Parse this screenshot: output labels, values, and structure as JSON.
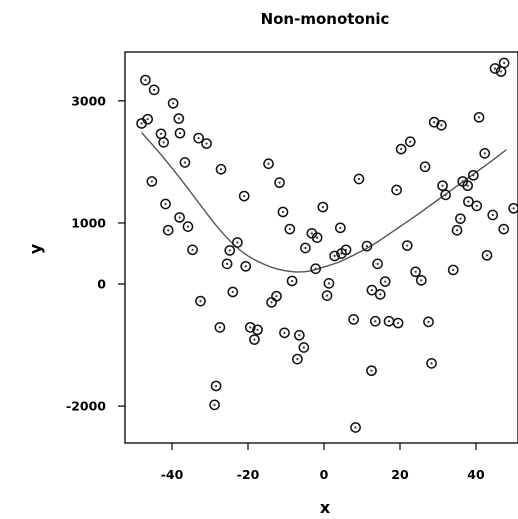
{
  "chart_data": {
    "type": "scatter",
    "title": "Non-monotonic",
    "xlabel": "x",
    "ylabel": "y",
    "xlim": [
      -52,
      52
    ],
    "ylim": [
      -2600,
      3700
    ],
    "xticks": [
      -40,
      -20,
      0,
      20,
      40
    ],
    "yticks": [
      -2000,
      0,
      1000,
      3000
    ],
    "xtick_labels": [
      "-40",
      "-20",
      "0",
      "20",
      "40"
    ],
    "ytick_labels": [
      "-2000",
      "0",
      "1000",
      "3000"
    ],
    "grid": false,
    "marker": "open-circle-with-dot",
    "points": [
      {
        "x": -47.0,
        "y": 3340
      },
      {
        "x": -44.7,
        "y": 3180
      },
      {
        "x": -48.0,
        "y": 2630
      },
      {
        "x": -46.4,
        "y": 2700
      },
      {
        "x": -42.9,
        "y": 2460
      },
      {
        "x": -42.2,
        "y": 2320
      },
      {
        "x": -39.7,
        "y": 2960
      },
      {
        "x": -38.2,
        "y": 2710
      },
      {
        "x": -37.9,
        "y": 2470
      },
      {
        "x": -36.6,
        "y": 1990
      },
      {
        "x": -33.0,
        "y": 2390
      },
      {
        "x": -30.9,
        "y": 2300
      },
      {
        "x": -45.3,
        "y": 1680
      },
      {
        "x": -41.7,
        "y": 1310
      },
      {
        "x": -41.0,
        "y": 880
      },
      {
        "x": -38.0,
        "y": 1090
      },
      {
        "x": -35.8,
        "y": 940
      },
      {
        "x": -34.6,
        "y": 560
      },
      {
        "x": -32.5,
        "y": -280
      },
      {
        "x": -27.1,
        "y": 1880
      },
      {
        "x": -24.8,
        "y": 550
      },
      {
        "x": -25.5,
        "y": 330
      },
      {
        "x": -24.0,
        "y": -130
      },
      {
        "x": -22.8,
        "y": 680
      },
      {
        "x": -21.0,
        "y": 1440
      },
      {
        "x": -20.6,
        "y": 290
      },
      {
        "x": -19.4,
        "y": -710
      },
      {
        "x": -27.4,
        "y": -710
      },
      {
        "x": -18.3,
        "y": -910
      },
      {
        "x": -17.5,
        "y": -750
      },
      {
        "x": -14.6,
        "y": 1970
      },
      {
        "x": -13.8,
        "y": -300
      },
      {
        "x": -12.5,
        "y": -200
      },
      {
        "x": -11.7,
        "y": 1660
      },
      {
        "x": -10.8,
        "y": 1180
      },
      {
        "x": -10.4,
        "y": -800
      },
      {
        "x": -9.0,
        "y": 900
      },
      {
        "x": -8.4,
        "y": 50
      },
      {
        "x": -7.0,
        "y": -1230
      },
      {
        "x": -6.5,
        "y": -840
      },
      {
        "x": -5.3,
        "y": -1040
      },
      {
        "x": -4.9,
        "y": 590
      },
      {
        "x": -3.2,
        "y": 830
      },
      {
        "x": -1.8,
        "y": 760
      },
      {
        "x": -0.3,
        "y": 1260
      },
      {
        "x": -2.2,
        "y": 250
      },
      {
        "x": 0.8,
        "y": -190
      },
      {
        "x": 1.3,
        "y": 10
      },
      {
        "x": 2.8,
        "y": 460
      },
      {
        "x": 4.3,
        "y": 920
      },
      {
        "x": 4.6,
        "y": 500
      },
      {
        "x": 5.8,
        "y": 560
      },
      {
        "x": 7.8,
        "y": -580
      },
      {
        "x": 9.2,
        "y": 1720
      },
      {
        "x": 11.3,
        "y": 620
      },
      {
        "x": 12.6,
        "y": -100
      },
      {
        "x": 13.5,
        "y": -610
      },
      {
        "x": 14.1,
        "y": 330
      },
      {
        "x": 14.8,
        "y": -170
      },
      {
        "x": 16.1,
        "y": 40
      },
      {
        "x": 17.1,
        "y": -610
      },
      {
        "x": 19.5,
        "y": -640
      },
      {
        "x": 19.1,
        "y": 1540
      },
      {
        "x": 20.3,
        "y": 2210
      },
      {
        "x": 21.9,
        "y": 630
      },
      {
        "x": 22.7,
        "y": 2330
      },
      {
        "x": 24.1,
        "y": 200
      },
      {
        "x": 25.6,
        "y": 60
      },
      {
        "x": 26.6,
        "y": 1920
      },
      {
        "x": 27.5,
        "y": -620
      },
      {
        "x": 28.3,
        "y": -1300
      },
      {
        "x": 29.0,
        "y": 2650
      },
      {
        "x": 30.9,
        "y": 2600
      },
      {
        "x": 31.2,
        "y": 1610
      },
      {
        "x": 32.0,
        "y": 1460
      },
      {
        "x": 34.0,
        "y": 230
      },
      {
        "x": 35.0,
        "y": 880
      },
      {
        "x": 35.9,
        "y": 1070
      },
      {
        "x": 36.5,
        "y": 1680
      },
      {
        "x": 37.8,
        "y": 1610
      },
      {
        "x": 38.0,
        "y": 1350
      },
      {
        "x": 39.3,
        "y": 1780
      },
      {
        "x": 40.2,
        "y": 1280
      },
      {
        "x": 40.8,
        "y": 2730
      },
      {
        "x": 42.3,
        "y": 2140
      },
      {
        "x": 42.9,
        "y": 470
      },
      {
        "x": 44.4,
        "y": 1130
      },
      {
        "x": 45.0,
        "y": 3530
      },
      {
        "x": 46.6,
        "y": 3480
      },
      {
        "x": 47.4,
        "y": 3620
      },
      {
        "x": 47.3,
        "y": 900
      },
      {
        "x": 49.9,
        "y": 1240
      },
      {
        "x": 8.3,
        "y": -2350
      },
      {
        "x": 12.5,
        "y": -1420
      },
      {
        "x": -28.4,
        "y": -1670
      },
      {
        "x": -28.8,
        "y": -1980
      }
    ],
    "curve": {
      "x": [
        -48,
        -44,
        -40,
        -36,
        -32,
        -28,
        -24,
        -20,
        -16,
        -12,
        -8,
        -4,
        0,
        4,
        8,
        12,
        16,
        20,
        24,
        28,
        32,
        36,
        40,
        44,
        48
      ],
      "y": [
        2480,
        2200,
        1900,
        1580,
        1250,
        930,
        660,
        460,
        330,
        240,
        200,
        210,
        280,
        360,
        480,
        610,
        770,
        940,
        1110,
        1290,
        1470,
        1650,
        1830,
        2010,
        2200
      ]
    }
  }
}
